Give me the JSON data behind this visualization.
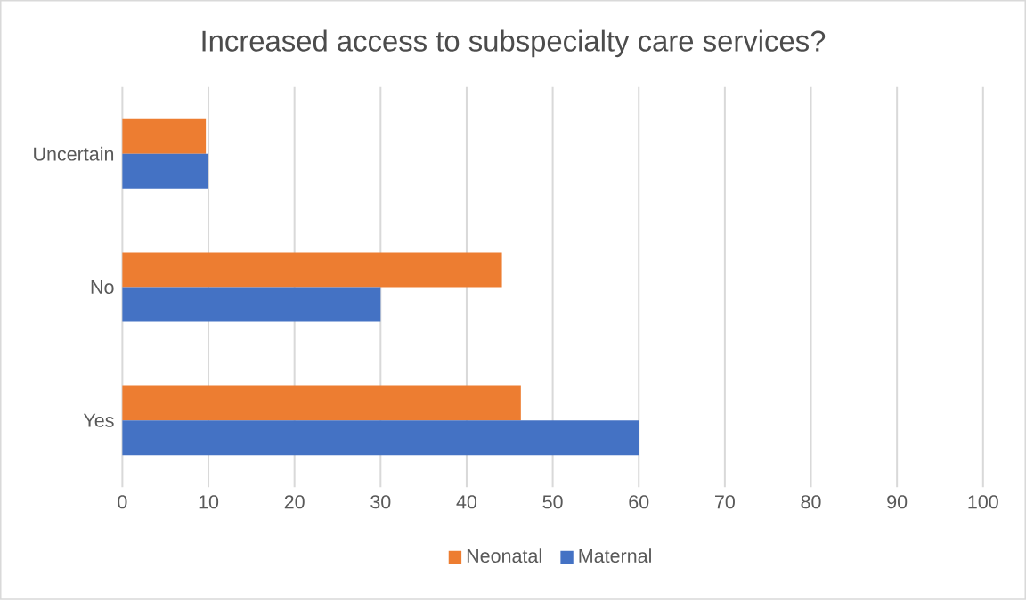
{
  "chart_data": {
    "type": "bar",
    "orientation": "horizontal",
    "title": "Increased access to subspecialty care services?",
    "categories": [
      "Uncertain",
      "No",
      "Yes"
    ],
    "series": [
      {
        "name": "Neonatal",
        "color": "#ed7d31",
        "values": [
          9.7,
          44.1,
          46.3
        ]
      },
      {
        "name": "Maternal",
        "color": "#4472c4",
        "values": [
          10,
          30,
          60
        ]
      }
    ],
    "xlim": [
      0,
      100
    ],
    "xticks": [
      0,
      10,
      20,
      30,
      40,
      50,
      60,
      70,
      80,
      90,
      100
    ],
    "grid": "x",
    "legend": "bottom"
  }
}
